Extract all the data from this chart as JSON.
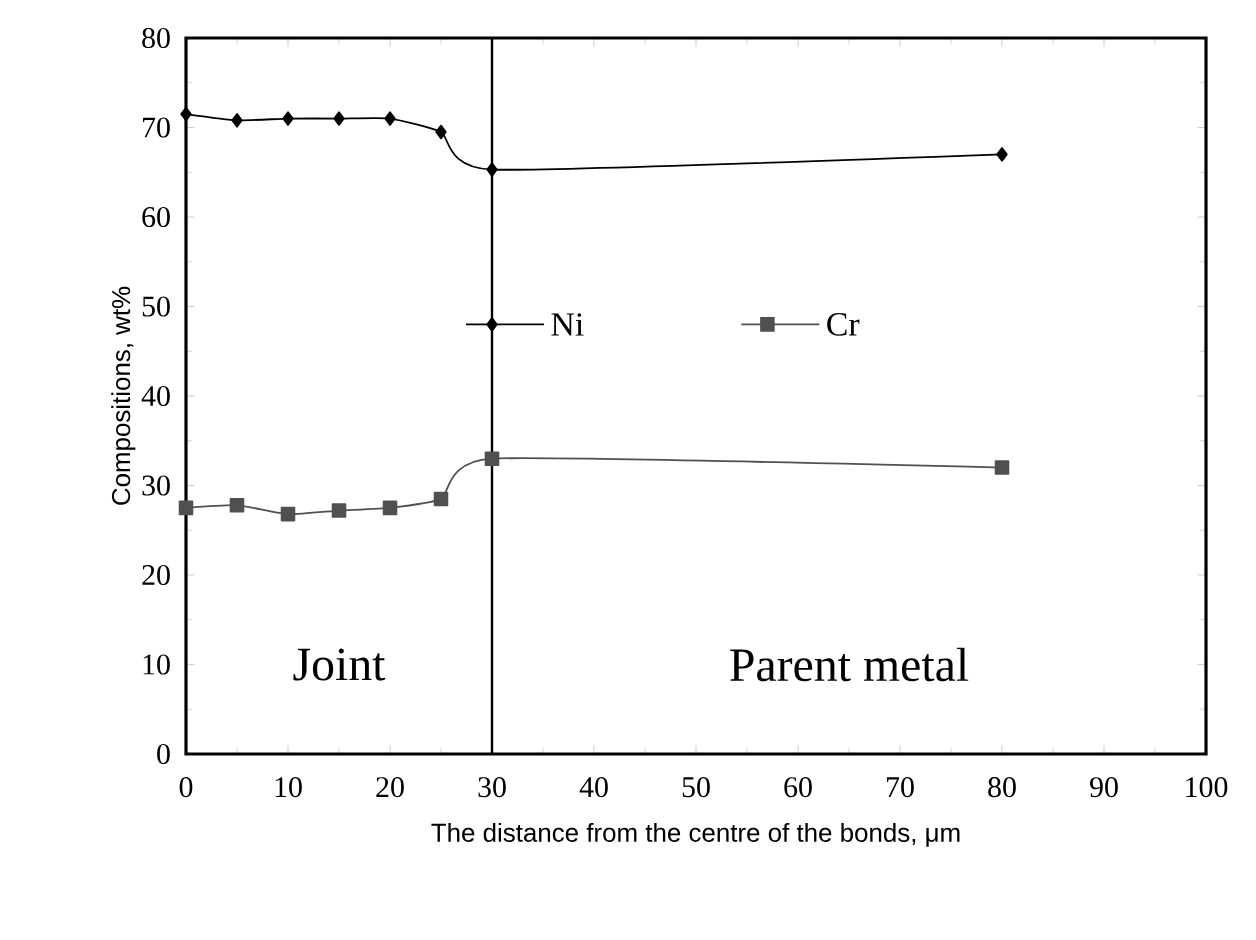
{
  "chart_data": {
    "type": "line",
    "xlabel": "The distance from the centre of the bonds, μm",
    "ylabel": "Compositions, wt%",
    "x": [
      0,
      5,
      10,
      15,
      20,
      25,
      30,
      80
    ],
    "series": [
      {
        "name": "Ni",
        "color": "#000000",
        "marker": "diamond",
        "values": [
          71.5,
          70.8,
          71,
          71,
          71,
          69.5,
          65.3,
          67
        ]
      },
      {
        "name": "Cr",
        "color": "#505050",
        "marker": "square",
        "values": [
          27.5,
          27.8,
          26.8,
          27.2,
          27.5,
          28.5,
          33,
          32
        ]
      }
    ],
    "xlim": [
      0,
      100
    ],
    "xticks": [
      0,
      10,
      20,
      30,
      40,
      50,
      60,
      70,
      80,
      90,
      100
    ],
    "ylim": [
      0,
      80
    ],
    "yticks": [
      0,
      10,
      20,
      30,
      40,
      50,
      60,
      70,
      80
    ],
    "ref_lines": [
      {
        "axis": "x",
        "value": 30,
        "label": null
      }
    ],
    "annotations": [
      "Joint",
      "Parent metal"
    ],
    "legend": "center",
    "grid": false
  }
}
